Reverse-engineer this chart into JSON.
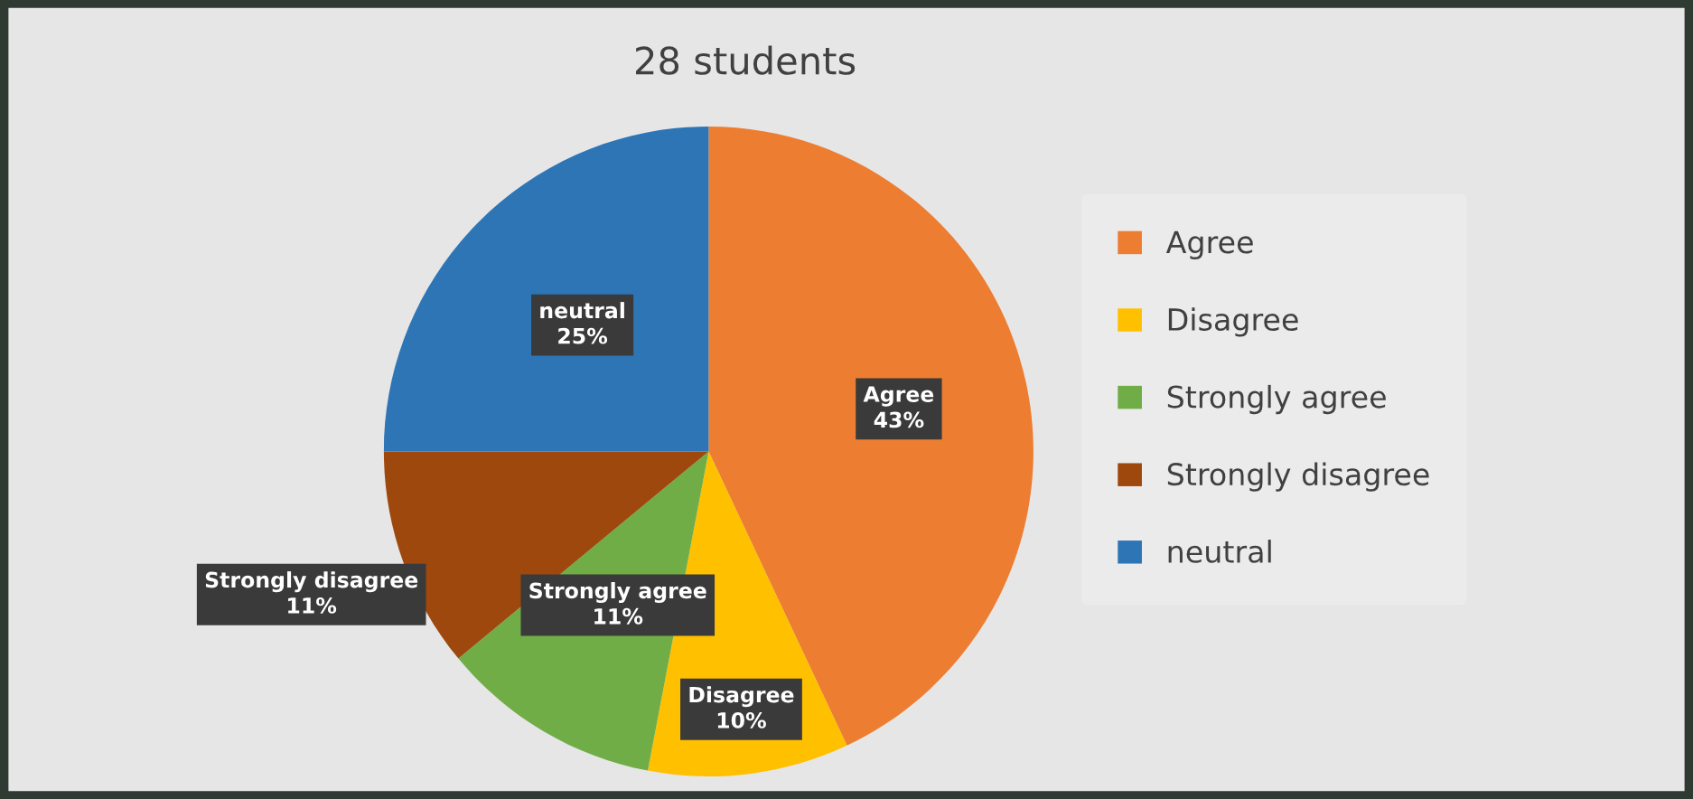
{
  "chart_data": {
    "type": "pie",
    "title": "28 students",
    "categories": [
      "Agree",
      "Disagree",
      "Strongly agree",
      "Strongly disagree",
      "neutral"
    ],
    "values": [
      43,
      10,
      11,
      11,
      25
    ],
    "value_labels": [
      "43%",
      "10%",
      "11%",
      "11%",
      "25%"
    ],
    "colors": [
      "#ed7d31",
      "#ffc000",
      "#70ad47",
      "#9e480e",
      "#2e75b6"
    ],
    "legend": "right"
  }
}
